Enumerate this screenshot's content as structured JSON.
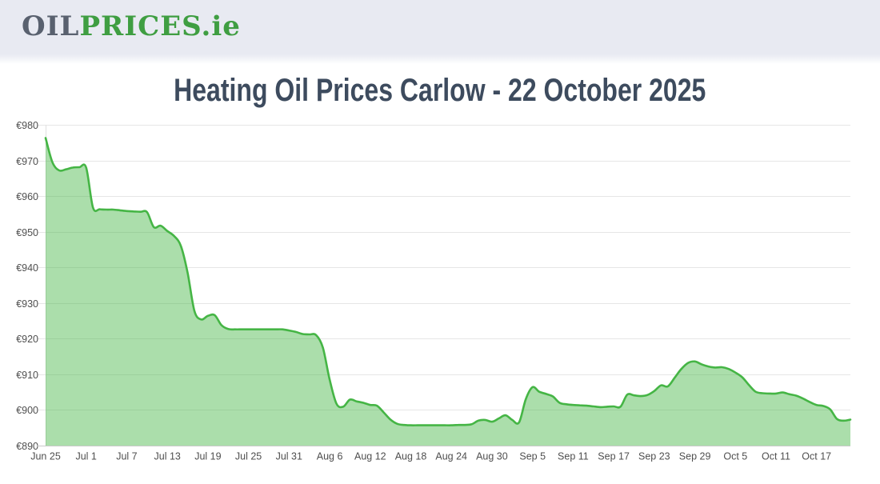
{
  "header": {
    "logo": {
      "part1": "OIL",
      "part2": "PRICES",
      "suffix": ".ie"
    }
  },
  "title": "Heating Oil Prices Carlow - 22 October 2025",
  "theme": {
    "page_bg": "#ffffff",
    "header_bg": "#e8eaf2",
    "title_color": "#3d4b5e",
    "logo_gray": "#59616f",
    "logo_green": "#3f9e42"
  },
  "chart_data": {
    "type": "area",
    "title": "Heating Oil Prices Carlow - 22 October 2025",
    "xlabel": "",
    "ylabel": "",
    "grid": "horizontal",
    "legend": false,
    "ylim": [
      890,
      980
    ],
    "y_tick_step": 10,
    "y_tick_prefix": "€",
    "x_tick_labels": [
      "Jun 25",
      "Jul 1",
      "Jul 7",
      "Jul 13",
      "Jul 19",
      "Jul 25",
      "Jul 31",
      "Aug 6",
      "Aug 12",
      "Aug 18",
      "Aug 24",
      "Aug 30",
      "Sep 5",
      "Sep 11",
      "Sep 17",
      "Sep 23",
      "Sep 29",
      "Oct 5",
      "Oct 11",
      "Oct 17"
    ],
    "x_tick_interval_days": 6,
    "dates": [
      "Jun 25",
      "Jun 26",
      "Jun 27",
      "Jun 28",
      "Jun 29",
      "Jun 30",
      "Jul 1",
      "Jul 2",
      "Jul 3",
      "Jul 4",
      "Jul 5",
      "Jul 6",
      "Jul 7",
      "Jul 8",
      "Jul 9",
      "Jul 10",
      "Jul 11",
      "Jul 12",
      "Jul 13",
      "Jul 14",
      "Jul 15",
      "Jul 16",
      "Jul 17",
      "Jul 18",
      "Jul 19",
      "Jul 20",
      "Jul 21",
      "Jul 22",
      "Jul 23",
      "Jul 24",
      "Jul 25",
      "Jul 26",
      "Jul 27",
      "Jul 28",
      "Jul 29",
      "Jul 30",
      "Jul 31",
      "Aug 1",
      "Aug 2",
      "Aug 3",
      "Aug 4",
      "Aug 5",
      "Aug 6",
      "Aug 7",
      "Aug 8",
      "Aug 9",
      "Aug 10",
      "Aug 11",
      "Aug 12",
      "Aug 13",
      "Aug 14",
      "Aug 15",
      "Aug 16",
      "Aug 17",
      "Aug 18",
      "Aug 19",
      "Aug 20",
      "Aug 21",
      "Aug 22",
      "Aug 23",
      "Aug 24",
      "Aug 25",
      "Aug 26",
      "Aug 27",
      "Aug 28",
      "Aug 29",
      "Aug 30",
      "Aug 31",
      "Sep 1",
      "Sep 2",
      "Sep 3",
      "Sep 4",
      "Sep 5",
      "Sep 6",
      "Sep 7",
      "Sep 8",
      "Sep 9",
      "Sep 10",
      "Sep 11",
      "Sep 12",
      "Sep 13",
      "Sep 14",
      "Sep 15",
      "Sep 16",
      "Sep 17",
      "Sep 18",
      "Sep 19",
      "Sep 20",
      "Sep 21",
      "Sep 22",
      "Sep 23",
      "Sep 24",
      "Sep 25",
      "Sep 26",
      "Sep 27",
      "Sep 28",
      "Sep 29",
      "Sep 30",
      "Oct 1",
      "Oct 2",
      "Oct 3",
      "Oct 4",
      "Oct 5",
      "Oct 6",
      "Oct 7",
      "Oct 8",
      "Oct 9",
      "Oct 10",
      "Oct 11",
      "Oct 12",
      "Oct 13",
      "Oct 14",
      "Oct 15",
      "Oct 16",
      "Oct 17",
      "Oct 18",
      "Oct 19",
      "Oct 20",
      "Oct 21",
      "Oct 22"
    ],
    "values": [
      976.3,
      969.5,
      967.2,
      967.5,
      968.0,
      968.1,
      968.0,
      956.8,
      956.3,
      956.2,
      956.2,
      956.0,
      955.8,
      955.7,
      955.6,
      955.5,
      951.3,
      951.7,
      950.2,
      948.8,
      946.0,
      938.5,
      927.8,
      925.4,
      926.4,
      926.6,
      923.8,
      922.7,
      922.6,
      922.6,
      922.6,
      922.6,
      922.6,
      922.6,
      922.6,
      922.6,
      922.3,
      921.9,
      921.3,
      921.2,
      921.0,
      917.5,
      908.5,
      901.8,
      900.9,
      902.9,
      902.4,
      902.0,
      901.4,
      901.2,
      899.3,
      897.3,
      896.1,
      895.8,
      895.7,
      895.7,
      895.7,
      895.7,
      895.7,
      895.7,
      895.7,
      895.8,
      895.8,
      896.0,
      897.0,
      897.2,
      896.7,
      897.6,
      898.5,
      897.2,
      896.5,
      903.0,
      906.4,
      905.1,
      904.5,
      903.8,
      902.0,
      901.6,
      901.4,
      901.3,
      901.2,
      901.0,
      900.8,
      900.9,
      901.0,
      900.9,
      904.3,
      904.1,
      903.9,
      904.2,
      905.3,
      906.9,
      906.6,
      909.0,
      911.5,
      913.2,
      913.6,
      912.8,
      912.2,
      911.9,
      912.0,
      911.5,
      910.5,
      909.2,
      907.0,
      905.1,
      904.7,
      904.6,
      904.6,
      904.9,
      904.4,
      904.0,
      903.2,
      902.2,
      901.4,
      901.1,
      900.2,
      897.5,
      897.0,
      897.3
    ],
    "colors": {
      "line": "#45b545",
      "fill": "rgba(69,181,69,0.45)",
      "grid": "#e6e6e6",
      "axis": "#c9c9c9",
      "tick_label": "#4f4f4f"
    }
  }
}
